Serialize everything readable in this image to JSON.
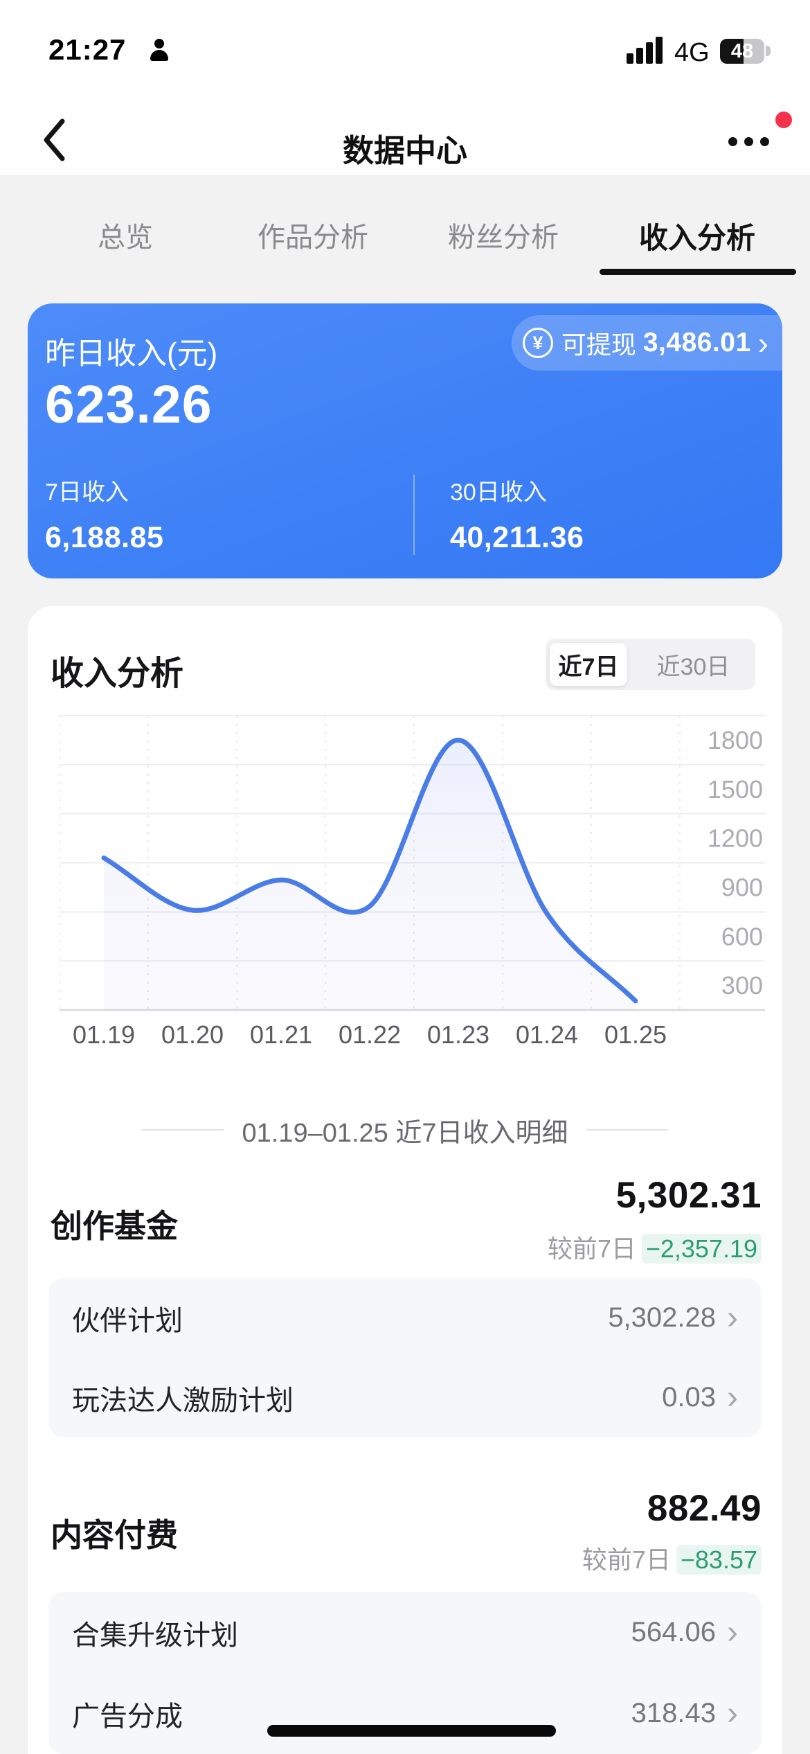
{
  "status_bar": {
    "time": "21:27",
    "network": "4G",
    "battery_percent": "48"
  },
  "nav": {
    "title": "数据中心",
    "has_notification_dot": true
  },
  "tabs": [
    {
      "label": "总览",
      "active": false
    },
    {
      "label": "作品分析",
      "active": false
    },
    {
      "label": "粉丝分析",
      "active": false
    },
    {
      "label": "收入分析",
      "active": true
    }
  ],
  "income_card": {
    "label": "昨日收入(元)",
    "yesterday_value": "623.26",
    "withdraw": {
      "icon": "¥",
      "label": "可提现",
      "value": "3,486.01",
      "chevron": "›"
    },
    "stats": [
      {
        "label": "7日收入",
        "value": "6,188.85"
      },
      {
        "label": "30日收入",
        "value": "40,211.36"
      }
    ]
  },
  "analysis_card": {
    "title": "收入分析",
    "range_toggle": [
      {
        "label": "近7日",
        "selected": true
      },
      {
        "label": "近30日",
        "selected": false
      }
    ]
  },
  "chart_data": {
    "type": "line",
    "title": "收入分析 近7日",
    "categories": [
      "01.19",
      "01.20",
      "01.21",
      "01.22",
      "01.23",
      "01.24",
      "01.25"
    ],
    "values": [
      930,
      610,
      795,
      635,
      1650,
      590,
      55
    ],
    "ylim": [
      0,
      1800
    ],
    "yticks": [
      300,
      600,
      900,
      1200,
      1500,
      1800
    ],
    "xlabel": "",
    "ylabel": "",
    "grid": true,
    "legend_position": "none",
    "line_color": "#4a7ce8",
    "smooth": true
  },
  "detail": {
    "divider_text": "01.19–01.25 近7日收入明细",
    "sections": [
      {
        "name": "创作基金",
        "amount": "5,302.31",
        "compare_label": "较前7日",
        "compare_value": "−2,357.19",
        "items": [
          {
            "label": "伙伴计划",
            "value": "5,302.28",
            "chevron": "›"
          },
          {
            "label": "玩法达人激励计划",
            "value": "0.03",
            "chevron": "›"
          }
        ]
      },
      {
        "name": "内容付费",
        "amount": "882.49",
        "compare_label": "较前7日",
        "compare_value": "−83.57",
        "items": [
          {
            "label": "合集升级计划",
            "value": "564.06",
            "chevron": "›"
          },
          {
            "label": "广告分成",
            "value": "318.43",
            "chevron": "›"
          }
        ]
      }
    ]
  },
  "colors": {
    "accent_blue": "#3e80f6",
    "chart_line": "#4a7ce8",
    "positive_green": "#2b9e71",
    "notification_red": "#f5324e",
    "page_background": "#f2f2f3"
  }
}
